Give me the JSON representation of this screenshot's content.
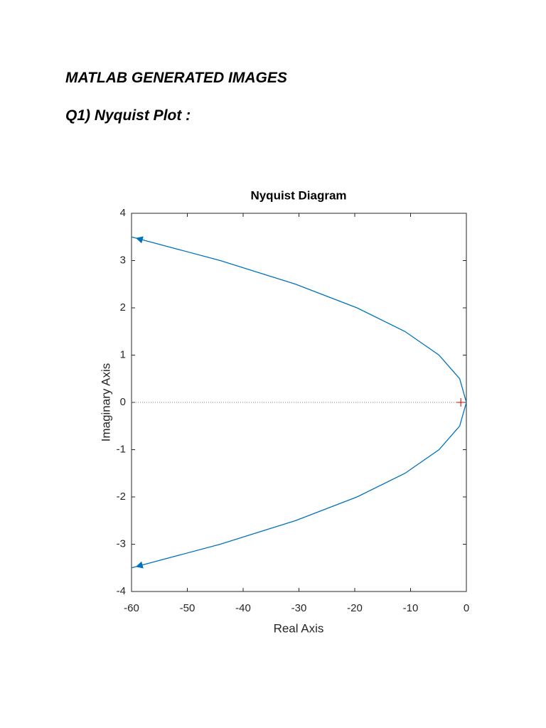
{
  "document": {
    "heading": "MATLAB GENERATED IMAGES",
    "subheading": "Q1) Nyquist Plot :"
  },
  "chart_data": {
    "type": "line",
    "title": "Nyquist Diagram",
    "x_label": "Real Axis",
    "y_label": "Imaginary Axis",
    "x": [
      -60,
      -44.1,
      -30.6,
      -19.6,
      -11,
      -4.9,
      -1.2,
      0,
      -1.2,
      -4.9,
      -11,
      -19.6,
      -30.6,
      -44.1,
      -60
    ],
    "series": [
      {
        "color": "#0072bd",
        "values": [
          3.5,
          3,
          2.5,
          2,
          1.5,
          1,
          0.5,
          0,
          -0.5,
          -1,
          -1.5,
          -2,
          -2.5,
          -3,
          -3.5
        ]
      }
    ],
    "critical_point": {
      "x": -1,
      "y": 0,
      "color": "#d00000"
    },
    "xlim": [
      -60,
      0
    ],
    "xticks": [
      -60,
      -50,
      -40,
      -30,
      -20,
      -10,
      0
    ],
    "ylim": [
      -4,
      4
    ],
    "yticks": [
      -4,
      -3,
      -2,
      -1,
      0,
      1,
      2,
      3,
      4
    ],
    "grid": false
  }
}
